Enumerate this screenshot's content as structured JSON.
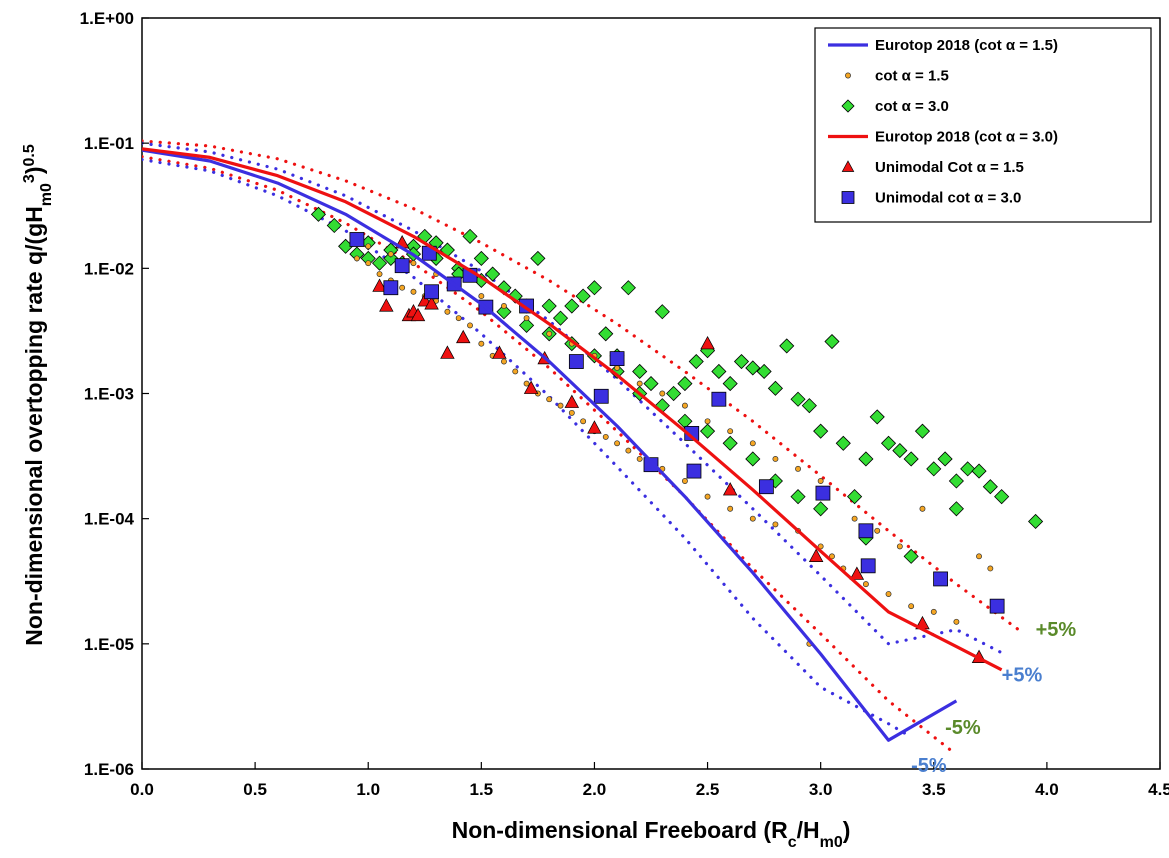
{
  "chart_data": {
    "type": "scatter",
    "title": "",
    "xlim": [
      0,
      4.5
    ],
    "ylim": [
      1e-06,
      1
    ],
    "y_scale": "log",
    "grid": false,
    "legend_position": "top-right",
    "x_ticks": [
      "0.0",
      "0.5",
      "1.0",
      "1.5",
      "2.0",
      "2.5",
      "3.0",
      "3.5",
      "4.0",
      "4.5"
    ],
    "x_tick_values": [
      0,
      0.5,
      1,
      1.5,
      2,
      2.5,
      3,
      3.5,
      4,
      4.5
    ],
    "y_ticks": [
      "1.E+00",
      "1.E-01",
      "1.E-02",
      "1.E-03",
      "1.E-04",
      "1.E-05",
      "1.E-06"
    ],
    "y_tick_values": [
      1,
      0.1,
      0.01,
      0.001,
      0.0001,
      1e-05,
      1e-06
    ],
    "xlabel": {
      "main": "Non-dimensional Freeboard (R",
      "sub1": "c",
      "mid": "/H",
      "sub2": "m0",
      "end": ")"
    },
    "ylabel": {
      "main": "Non-dimensional overtopping rate  q/(gH",
      "sub": "m0",
      "sup1": "3",
      "mid": ")",
      "sup2": "0.5"
    },
    "series": [
      {
        "name": "Eurotop 2018 (cot α = 1.5)",
        "kind": "line",
        "color": "#3b2fe0",
        "x": [
          0,
          0.3,
          0.6,
          0.9,
          1.2,
          1.5,
          1.8,
          2.1,
          2.4,
          2.7,
          3.0,
          3.3,
          3.6
        ],
        "y": [
          0.088,
          0.072,
          0.048,
          0.027,
          0.0128,
          0.0052,
          0.0018,
          0.00055,
          0.00015,
          3.7e-05,
          8.3e-06,
          1.7e-06,
          3.5e-06
        ]
      },
      {
        "name": "cot α = 1.5",
        "kind": "scatter",
        "marker": "circle",
        "color": "#f5a623",
        "x": [
          0.95,
          1.0,
          1.05,
          1.1,
          1.15,
          1.2,
          1.25,
          1.3,
          1.35,
          1.4,
          1.45,
          1.5,
          1.55,
          1.6,
          1.65,
          1.7,
          1.75,
          1.8,
          1.85,
          1.9,
          1.95,
          2.0,
          2.05,
          2.1,
          2.15,
          2.2,
          2.3,
          2.4,
          2.5,
          2.6,
          2.7,
          2.8,
          2.9,
          3.0,
          3.05,
          3.1,
          3.2,
          3.3,
          3.4,
          3.5,
          3.6,
          3.7,
          3.75,
          1.0,
          1.1,
          1.2,
          1.3,
          1.4,
          1.5,
          1.6,
          1.7,
          1.8,
          1.9,
          2.0,
          2.1,
          2.2,
          2.3,
          2.4,
          2.5,
          2.6,
          2.7,
          2.8,
          2.9,
          3.0,
          2.95,
          3.15,
          3.25,
          3.35,
          3.45
        ],
        "y": [
          0.012,
          0.011,
          0.009,
          0.008,
          0.007,
          0.0065,
          0.006,
          0.0055,
          0.0045,
          0.004,
          0.0035,
          0.0025,
          0.002,
          0.0018,
          0.0015,
          0.0012,
          0.001,
          0.0009,
          0.0008,
          0.0007,
          0.0006,
          0.0005,
          0.00045,
          0.0004,
          0.00035,
          0.0003,
          0.00025,
          0.0002,
          0.00015,
          0.00012,
          0.0001,
          9e-05,
          8e-05,
          6e-05,
          5e-05,
          4e-05,
          3e-05,
          2.5e-05,
          2e-05,
          1.8e-05,
          1.5e-05,
          5e-05,
          4e-05,
          0.015,
          0.013,
          0.011,
          0.009,
          0.007,
          0.006,
          0.005,
          0.004,
          0.003,
          0.0025,
          0.002,
          0.0016,
          0.0012,
          0.001,
          0.0008,
          0.0006,
          0.0005,
          0.0004,
          0.0003,
          0.00025,
          0.0002,
          1e-05,
          0.0001,
          8e-05,
          6e-05,
          0.00012
        ]
      },
      {
        "name": "cot α = 3.0",
        "kind": "scatter",
        "marker": "diamond",
        "color": "#33dd33",
        "x": [
          0.78,
          0.85,
          0.9,
          0.95,
          1.0,
          1.05,
          1.1,
          1.15,
          1.2,
          1.25,
          1.3,
          1.35,
          1.4,
          1.45,
          1.5,
          1.55,
          1.6,
          1.65,
          1.7,
          1.75,
          1.8,
          1.85,
          1.9,
          1.95,
          2.0,
          2.05,
          2.1,
          2.15,
          2.2,
          2.25,
          2.3,
          2.35,
          2.4,
          2.45,
          2.5,
          2.55,
          2.6,
          2.65,
          2.7,
          2.75,
          2.8,
          2.85,
          2.9,
          2.95,
          3.0,
          3.05,
          3.1,
          3.15,
          3.2,
          3.25,
          3.3,
          3.35,
          3.4,
          3.45,
          3.5,
          3.55,
          3.6,
          3.65,
          3.7,
          3.75,
          3.8,
          3.95,
          1.0,
          1.1,
          1.2,
          1.3,
          1.4,
          1.5,
          1.6,
          1.7,
          1.8,
          1.9,
          2.0,
          2.1,
          2.2,
          2.3,
          2.4,
          2.5,
          2.6,
          2.7,
          2.8,
          2.9,
          3.0,
          3.2,
          3.4,
          3.6
        ],
        "y": [
          0.027,
          0.022,
          0.015,
          0.013,
          0.012,
          0.011,
          0.012,
          0.011,
          0.015,
          0.018,
          0.016,
          0.014,
          0.01,
          0.018,
          0.012,
          0.009,
          0.007,
          0.006,
          0.005,
          0.012,
          0.005,
          0.004,
          0.005,
          0.006,
          0.007,
          0.003,
          0.002,
          0.007,
          0.0015,
          0.0012,
          0.0045,
          0.001,
          0.0012,
          0.0018,
          0.0022,
          0.0015,
          0.0012,
          0.0018,
          0.0016,
          0.0015,
          0.0011,
          0.0024,
          0.0009,
          0.0008,
          0.0005,
          0.0026,
          0.0004,
          0.00015,
          0.0003,
          0.00065,
          0.0004,
          0.00035,
          0.0003,
          0.0005,
          0.00025,
          0.0003,
          0.0002,
          0.00025,
          0.00024,
          0.00018,
          0.00015,
          9.5e-05,
          0.016,
          0.014,
          0.013,
          0.012,
          0.009,
          0.008,
          0.0045,
          0.0035,
          0.003,
          0.0025,
          0.002,
          0.0015,
          0.001,
          0.0008,
          0.0006,
          0.0005,
          0.0004,
          0.0003,
          0.0002,
          0.00015,
          0.00012,
          7e-05,
          5e-05,
          0.00012
        ]
      },
      {
        "name": "Eurotop 2018 (cot α = 3.0)",
        "kind": "line",
        "color": "#ee1111",
        "x": [
          0,
          0.3,
          0.6,
          0.9,
          1.2,
          1.5,
          1.8,
          2.1,
          2.4,
          2.7,
          3.0,
          3.3,
          3.6,
          3.8
        ],
        "y": [
          0.09,
          0.077,
          0.055,
          0.034,
          0.018,
          0.0085,
          0.0036,
          0.0014,
          0.0005,
          0.00017,
          5.5e-05,
          1.8e-05,
          9.5e-06,
          6.2e-06
        ]
      },
      {
        "name": "Unimodal Cot α = 1.5",
        "kind": "scatter",
        "marker": "triangle",
        "color": "#ee1111",
        "x": [
          1.05,
          1.08,
          1.15,
          1.18,
          1.2,
          1.22,
          1.25,
          1.28,
          1.35,
          1.42,
          1.58,
          1.72,
          1.78,
          1.9,
          2.0,
          2.5,
          2.6,
          2.98,
          3.16,
          3.45,
          3.7
        ],
        "y": [
          0.0072,
          0.005,
          0.016,
          0.0042,
          0.0045,
          0.0042,
          0.0055,
          0.0052,
          0.0021,
          0.0028,
          0.0021,
          0.0011,
          0.0019,
          0.00085,
          0.00053,
          0.0025,
          0.00017,
          5e-05,
          3.6e-05,
          1.45e-05,
          7.8e-06
        ]
      },
      {
        "name": "Unimodal cot α = 3.0",
        "kind": "scatter",
        "marker": "square",
        "color": "#3b2fe0",
        "x": [
          0.95,
          1.1,
          1.15,
          1.27,
          1.28,
          1.38,
          1.45,
          1.52,
          1.7,
          1.92,
          2.03,
          2.1,
          2.25,
          2.43,
          2.44,
          2.55,
          2.76,
          3.01,
          3.2,
          3.21,
          3.53,
          3.78
        ],
        "y": [
          0.017,
          0.007,
          0.0105,
          0.0132,
          0.0065,
          0.0075,
          0.0088,
          0.0049,
          0.005,
          0.0018,
          0.00095,
          0.0019,
          0.00027,
          0.00048,
          0.00024,
          0.0009,
          0.00018,
          0.00016,
          8e-05,
          4.2e-05,
          3.3e-05,
          2e-05
        ]
      }
    ],
    "bands": [
      {
        "series": "Eurotop 2018 (cot α = 3.0)",
        "kind": "dotted",
        "color": "#ee1111",
        "upper": {
          "x": [
            0,
            0.3,
            0.6,
            0.9,
            1.2,
            1.5,
            1.8,
            2.1,
            2.4,
            2.7,
            3.0,
            3.3,
            3.6,
            3.9
          ],
          "y": [
            0.104,
            0.095,
            0.075,
            0.05,
            0.03,
            0.016,
            0.008,
            0.0036,
            0.0015,
            0.0006,
            0.00022,
            8e-05,
            3e-05,
            1.2e-05
          ]
        },
        "lower": {
          "x": [
            0,
            0.3,
            0.6,
            0.9,
            1.2,
            1.5,
            1.8,
            2.1,
            2.4,
            2.7,
            3.0,
            3.3,
            3.6
          ],
          "y": [
            0.078,
            0.063,
            0.042,
            0.023,
            0.011,
            0.0045,
            0.0016,
            0.0005,
            0.00015,
            4e-05,
            1.2e-05,
            3.5e-06,
            1.3e-06
          ]
        }
      },
      {
        "series": "Eurotop 2018 (cot α = 1.5)",
        "kind": "dotted",
        "color": "#3b2fe0",
        "upper": {
          "x": [
            0,
            0.3,
            0.6,
            0.9,
            1.2,
            1.5,
            1.8,
            2.1,
            2.4,
            2.7,
            3.0,
            3.3,
            3.6,
            3.8
          ],
          "y": [
            0.1,
            0.085,
            0.062,
            0.038,
            0.02,
            0.0095,
            0.0038,
            0.0013,
            0.0004,
            0.00012,
            3.5e-05,
            1e-05,
            1.3e-05,
            8.5e-06
          ]
        },
        "lower": {
          "x": [
            0,
            0.3,
            0.6,
            0.9,
            1.2,
            1.5,
            1.8,
            2.1,
            2.4,
            2.7,
            3.0,
            3.3,
            3.4
          ],
          "y": [
            0.074,
            0.06,
            0.038,
            0.02,
            0.0085,
            0.003,
            0.00095,
            0.00026,
            7e-05,
            1.6e-05,
            4.5e-06,
            2.3e-06,
            1.8e-06
          ]
        }
      }
    ],
    "annotations": [
      {
        "text": "+5%",
        "x": 3.95,
        "y": 1.15e-05,
        "color": "#5a8a2a"
      },
      {
        "text": "+5%",
        "x": 3.8,
        "y": 5e-06,
        "color": "#4a7fcf"
      },
      {
        "text": "-5%",
        "x": 3.55,
        "y": 1.9e-06,
        "color": "#5a8a2a"
      },
      {
        "text": "-5%",
        "x": 3.4,
        "y": 9.5e-07,
        "color": "#4a7fcf"
      }
    ]
  }
}
